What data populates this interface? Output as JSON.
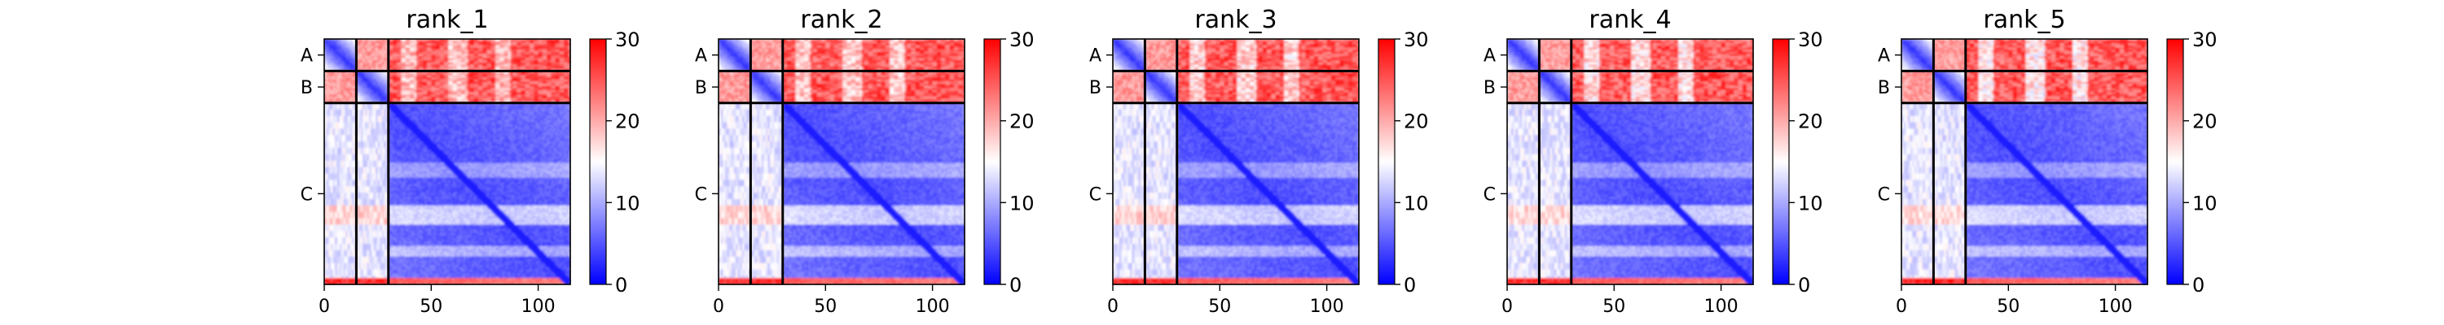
{
  "chart_data": {
    "type": "heatmap",
    "colormap": [
      "#0000ff",
      "#ffffff",
      "#ff0000"
    ],
    "color_range": [
      0,
      30
    ],
    "colorbar_ticks": [
      "0",
      "10",
      "20",
      "30"
    ],
    "x_range": [
      0,
      115
    ],
    "x_ticks": [
      0,
      50,
      100
    ],
    "chain_labels": [
      "A",
      "B",
      "C"
    ],
    "chain_bounds": [
      0,
      15,
      30,
      115
    ],
    "panels": [
      {
        "title": "rank_1"
      },
      {
        "title": "rank_2"
      },
      {
        "title": "rank_3"
      },
      {
        "title": "rank_4"
      },
      {
        "title": "rank_5"
      }
    ]
  }
}
